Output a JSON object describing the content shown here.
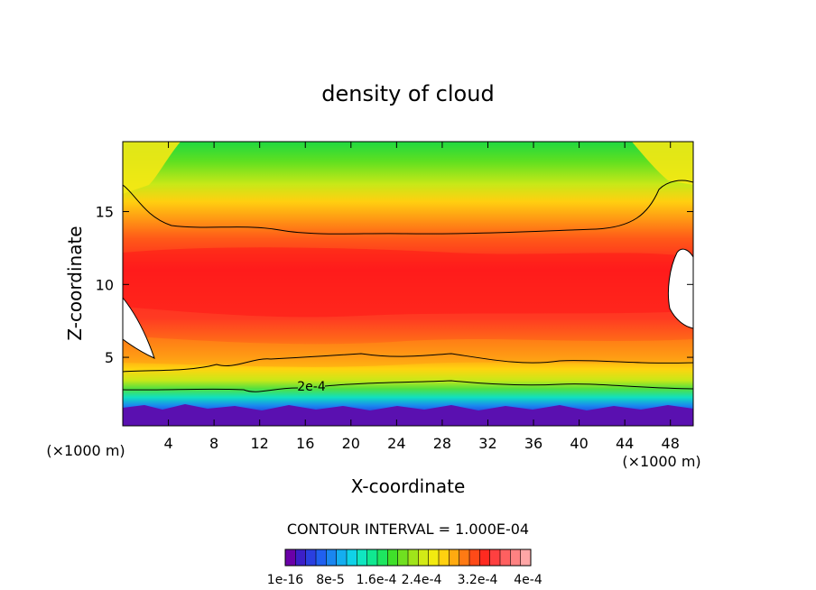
{
  "chart_data": {
    "type": "contour",
    "title": "density of cloud",
    "xlabel": "X-coordinate",
    "ylabel": "Z-coordinate",
    "x_unit_left": "(×1000 m)",
    "x_unit_right": "(×1000 m)",
    "xlim": [
      0,
      50
    ],
    "ylim": [
      0.3,
      19.8
    ],
    "x_ticks": [
      4,
      8,
      12,
      16,
      20,
      24,
      28,
      32,
      36,
      40,
      44,
      48
    ],
    "y_ticks": [
      5,
      10,
      15
    ],
    "contour_interval_text": "CONTOUR INTERVAL = 1.000E-04",
    "contour_line_label": "2e-4",
    "colorbar_labels": [
      "1e-16",
      "8e-5",
      "1.6e-4",
      "2.4e-4",
      "3.2e-4",
      "4e-4"
    ],
    "colorbar_colors": [
      "#6a00a8",
      "#3c1fc8",
      "#2a3fe0",
      "#2060f0",
      "#1a86f0",
      "#14aef0",
      "#10d2e8",
      "#10e6c0",
      "#10e890",
      "#1ee660",
      "#40e02a",
      "#70e020",
      "#a0e41a",
      "#d2ea16",
      "#f2ea10",
      "#ffd010",
      "#ffaa10",
      "#ff7a14",
      "#ff4a18",
      "#ff2a20",
      "#ff4040",
      "#ff6060",
      "#ff8282",
      "#ffa6a6"
    ],
    "background_color": "#ffffff"
  }
}
